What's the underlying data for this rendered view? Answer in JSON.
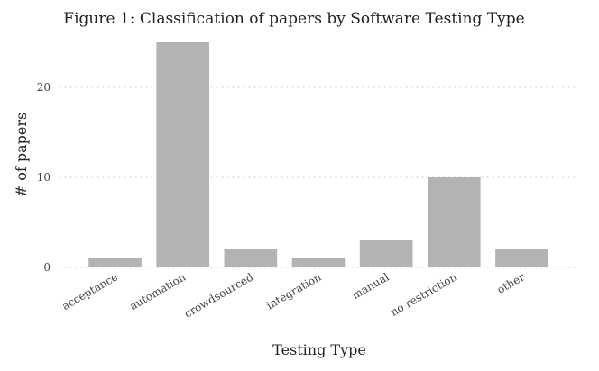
{
  "chart_data": {
    "type": "bar",
    "title": "Figure 1: Classification of papers by Software Testing Type",
    "xlabel": "Testing Type",
    "ylabel": "# of papers",
    "categories": [
      "acceptance",
      "automation",
      "crowdsourced",
      "integration",
      "manual",
      "no restriction",
      "other"
    ],
    "values": [
      1,
      25,
      2,
      1,
      3,
      10,
      2
    ],
    "ylim": [
      0,
      25
    ],
    "yticks": [
      0,
      10,
      20
    ],
    "bar_color": "#b3b3b3",
    "grid": true,
    "legend": "none"
  }
}
